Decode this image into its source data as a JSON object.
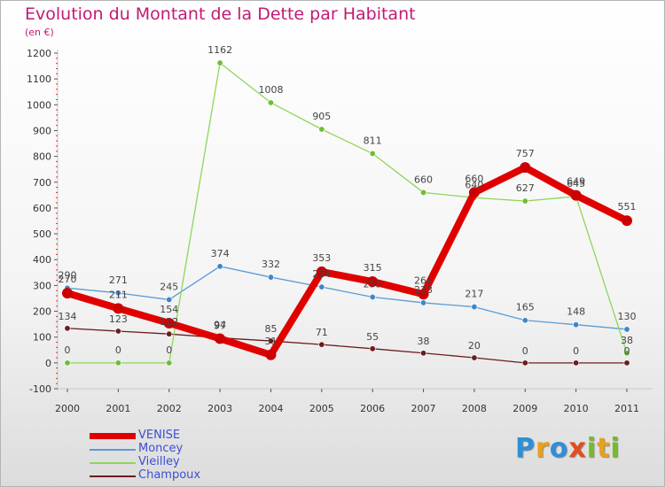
{
  "header": {
    "title": "Evolution du Montant de la Dette par Habitant",
    "subtitle": "(en €)"
  },
  "brand": {
    "letters": [
      "P",
      "r",
      "o",
      "x",
      "i",
      "t",
      "i"
    ],
    "colors": [
      "#2f8fd6",
      "#e8a11b",
      "#2f8fd6",
      "#e24d1c",
      "#7ab92f",
      "#e8a11b",
      "#7ab92f"
    ]
  },
  "chart_data": {
    "type": "line",
    "title": "Evolution du Montant de la Dette par Habitant",
    "subtitle": "(en €)",
    "xlabel": "",
    "ylabel": "",
    "ylim": [
      -100,
      1200
    ],
    "yticks": [
      "1200",
      "1100",
      "1000",
      "900",
      "800",
      "700",
      "600",
      "500",
      "400",
      "300",
      "200",
      "100",
      "0",
      "-100"
    ],
    "grid": false,
    "legend_position": "bottom-left",
    "categories": [
      "2000",
      "2001",
      "2002",
      "2003",
      "2004",
      "2005",
      "2006",
      "2007",
      "2008",
      "2009",
      "2010",
      "2011"
    ],
    "series": [
      {
        "name": "VENISE",
        "color": "#e00000",
        "values": [
          270,
          211,
          154,
          94,
          31,
          353,
          315,
          266,
          660,
          757,
          649,
          551
        ]
      },
      {
        "name": "Moncey",
        "color": "#5b9bd5",
        "values": [
          290,
          271,
          245,
          374,
          332,
          294,
          255,
          233,
          217,
          165,
          148,
          130
        ]
      },
      {
        "name": "Vieilley",
        "color": "#8ed65a",
        "values": [
          0,
          0,
          0,
          1162,
          1008,
          905,
          811,
          660,
          640,
          627,
          645,
          38
        ]
      },
      {
        "name": "Champoux",
        "color": "#6b1c1c",
        "values": [
          134,
          123,
          112,
          97,
          85,
          71,
          55,
          38,
          20,
          0,
          0,
          0
        ]
      }
    ],
    "point_labels": [
      {
        "series": "VENISE",
        "labels": [
          "270",
          "211",
          "154",
          "94",
          "31",
          "353",
          "315",
          "266",
          "660",
          "757",
          "649",
          "551"
        ]
      },
      {
        "series": "Moncey",
        "labels": [
          "290",
          "271",
          "245",
          "374",
          "332",
          "294",
          "255",
          "233",
          "217",
          "165",
          "148",
          "130"
        ]
      },
      {
        "series": "Vieilley",
        "labels": [
          "0",
          "0",
          "0",
          "1162",
          "1008",
          "905",
          "811",
          "660",
          "640",
          "627",
          "645",
          "38"
        ]
      },
      {
        "series": "Champoux",
        "labels": [
          "134",
          "123",
          "112",
          "97",
          "85",
          "71",
          "55",
          "38",
          "20",
          "0",
          "0",
          "0"
        ]
      }
    ]
  }
}
